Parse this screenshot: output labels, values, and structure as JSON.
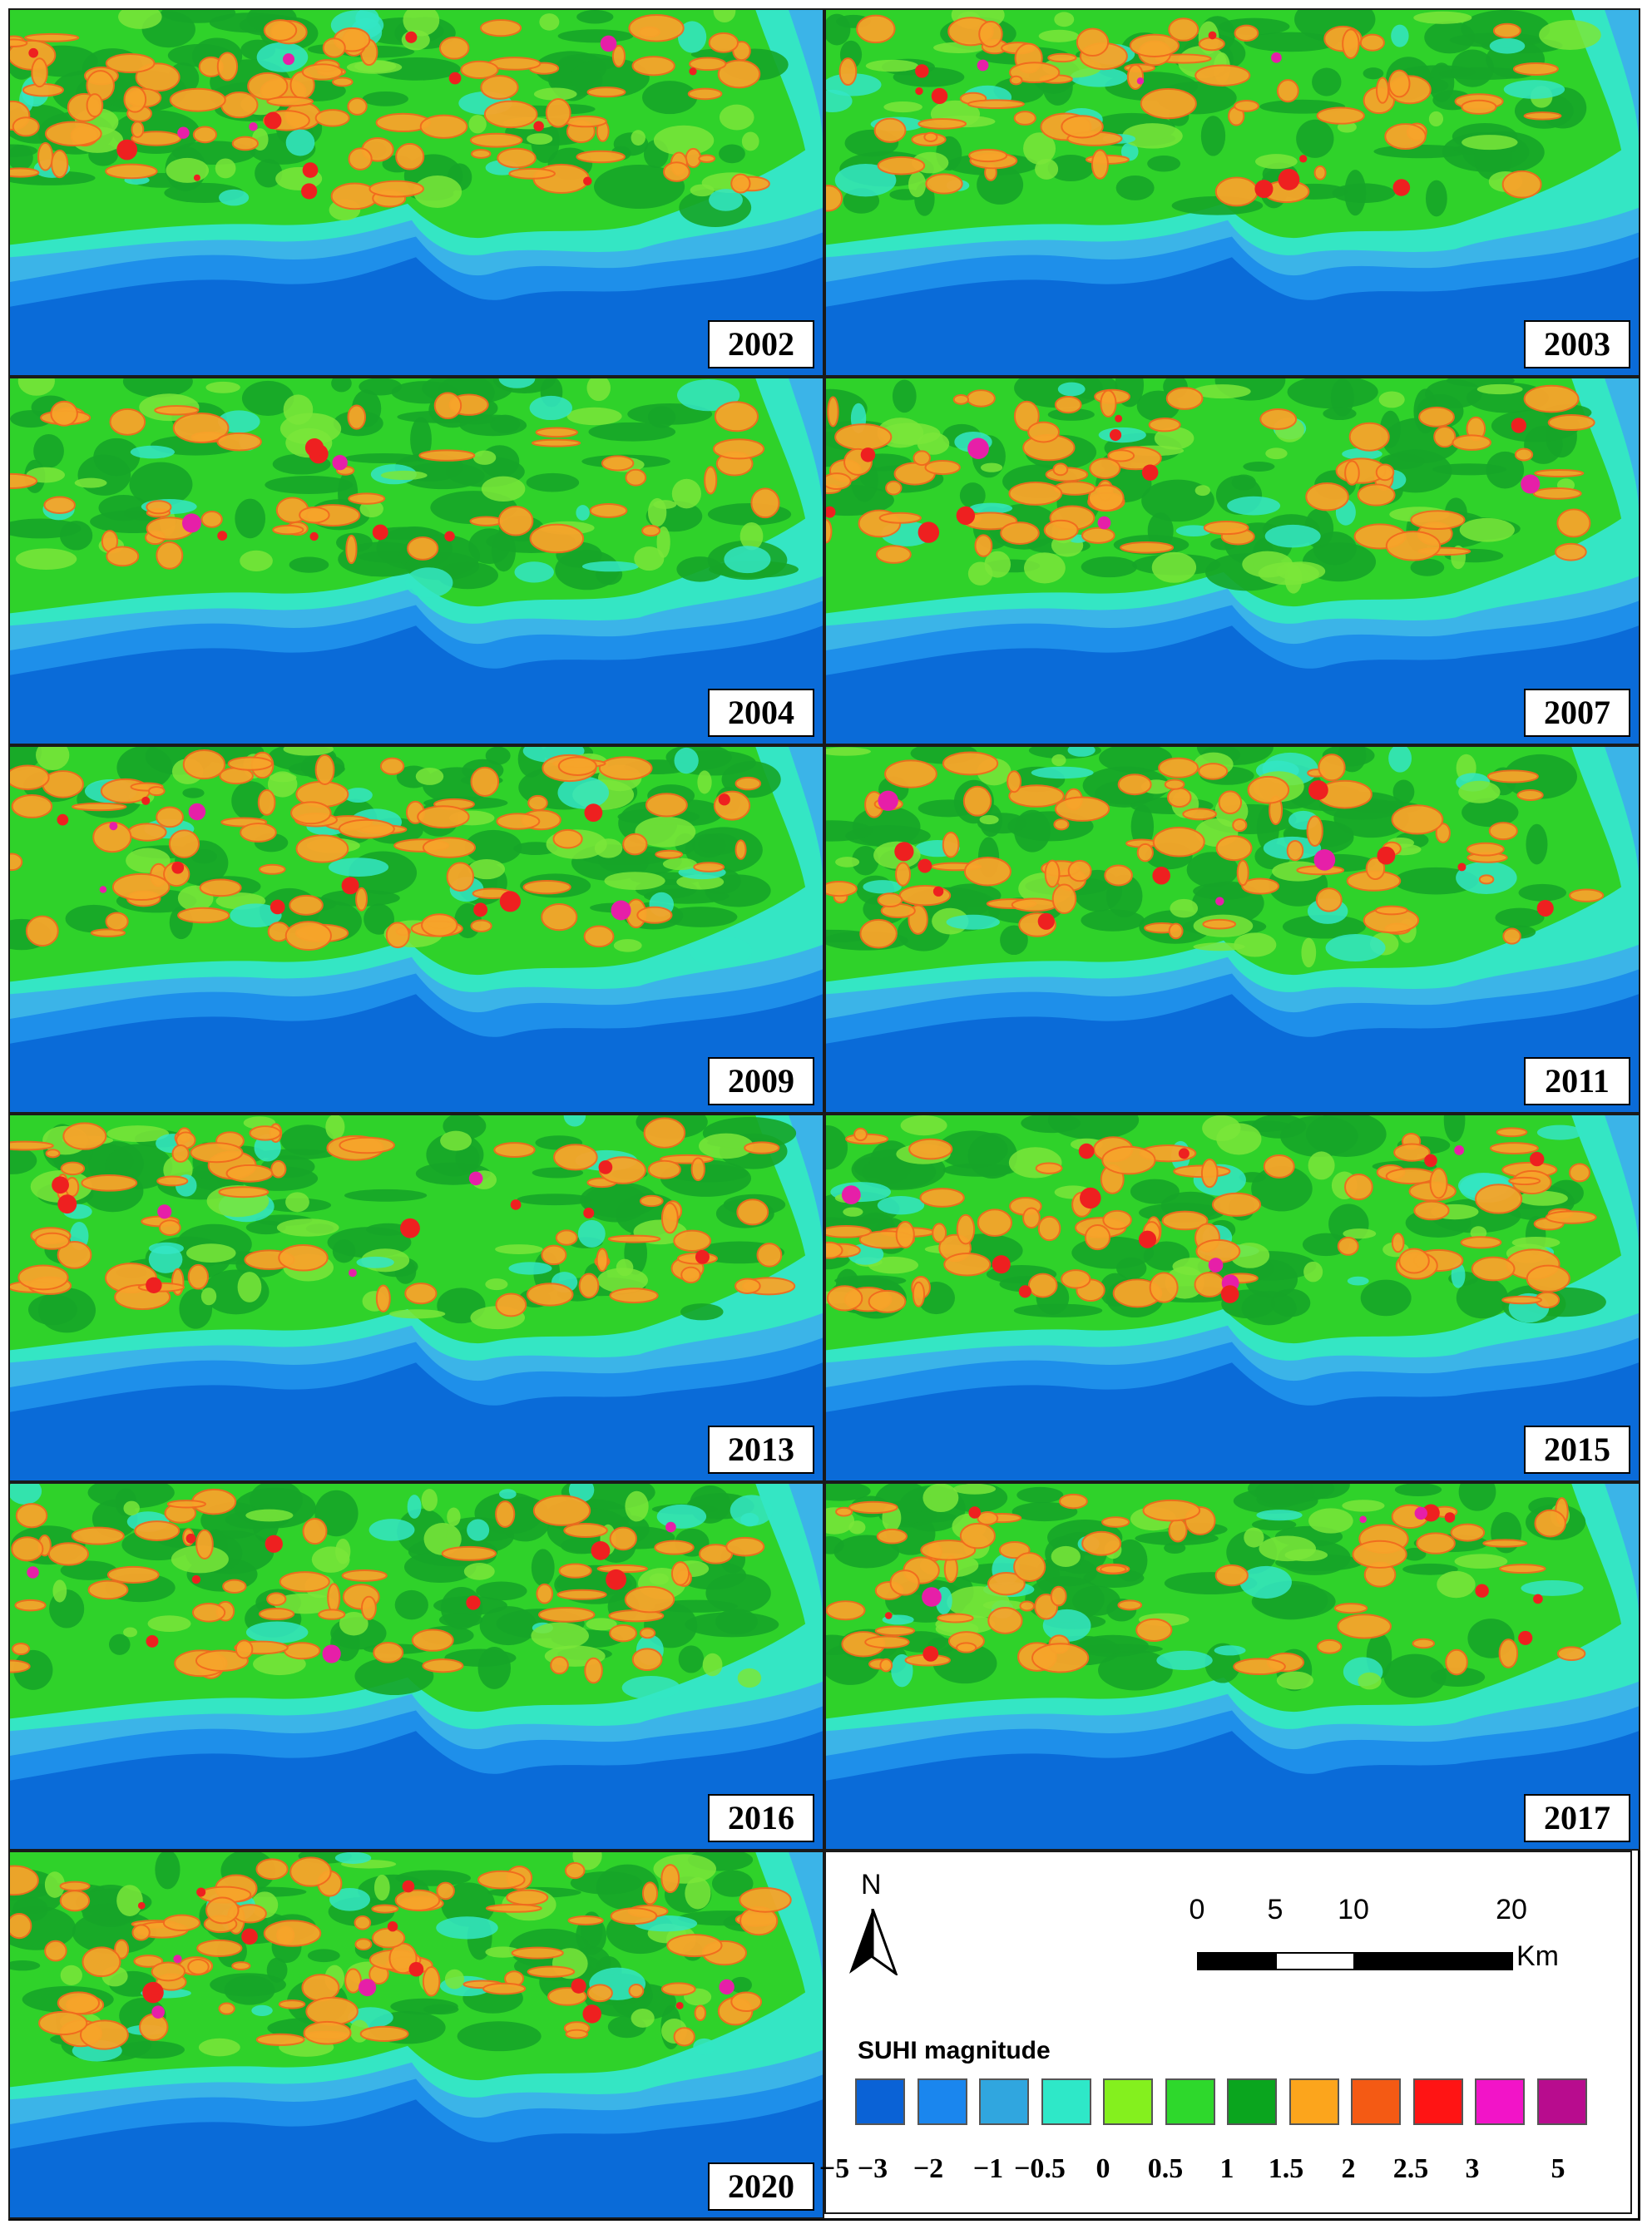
{
  "panels": [
    {
      "year": "2002",
      "hot": 1.0,
      "variant": 0
    },
    {
      "year": "2003",
      "hot": 0.7,
      "variant": 1
    },
    {
      "year": "2004",
      "hot": 0.5,
      "variant": 2
    },
    {
      "year": "2007",
      "hot": 0.75,
      "variant": 3
    },
    {
      "year": "2009",
      "hot": 0.85,
      "variant": 4
    },
    {
      "year": "2011",
      "hot": 0.8,
      "variant": 5
    },
    {
      "year": "2013",
      "hot": 0.75,
      "variant": 6
    },
    {
      "year": "2015",
      "hot": 0.85,
      "variant": 7
    },
    {
      "year": "2016",
      "hot": 0.65,
      "variant": 8
    },
    {
      "year": "2017",
      "hot": 0.7,
      "variant": 9
    },
    {
      "year": "2020",
      "hot": 0.95,
      "variant": 10
    }
  ],
  "map_colors": {
    "deep_blue": "#0a6bd8",
    "blue": "#1e8fea",
    "light_blue": "#3bb4e8",
    "cyan": "#34e6c4",
    "light_green": "#7ae63a",
    "green": "#2fd22a",
    "dark_green": "#16a528",
    "orange": "#f7a42a",
    "dark_orange": "#f26a1e",
    "red": "#ee2020",
    "magenta": "#e61fa8"
  },
  "north_arrow": {
    "label": "N"
  },
  "scale_bar": {
    "ticks": [
      "0",
      "5",
      "10",
      "20"
    ],
    "unit": "Km"
  },
  "legend": {
    "title": "SUHI magnitude",
    "colors": [
      "#0a62d6",
      "#1a86ee",
      "#30a6df",
      "#2ee8c8",
      "#84f01e",
      "#2ed82c",
      "#0aa51e",
      "#fca51c",
      "#f45a14",
      "#ff1414",
      "#f214c8",
      "#b80c8e"
    ],
    "values": [
      "−5",
      "−3",
      "−2",
      "−1",
      "−0.5",
      "0",
      "0.5",
      "1",
      "1.5",
      "2",
      "2.5",
      "3",
      "5"
    ]
  }
}
